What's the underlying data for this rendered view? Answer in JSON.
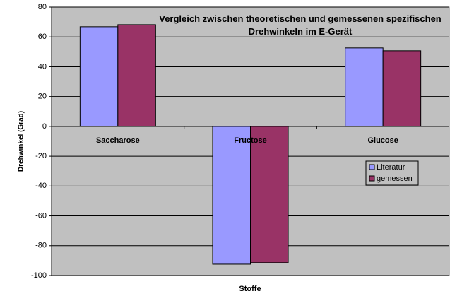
{
  "chart_data": {
    "type": "bar",
    "title": "Vergleich zwischen theoretischen und gemessenen spezifischen Drehwinkeln im E-Gerät",
    "x_label": "Stoffe",
    "y_label": "Drehwinkel (Grad)",
    "categories": [
      "Saccharose",
      "Fructose",
      "Glucose"
    ],
    "series": [
      {
        "name": "Literatur",
        "color": "#9999ff",
        "values": [
          66.8,
          -92.4,
          52.6
        ]
      },
      {
        "name": "gemessen",
        "color": "#993366",
        "values": [
          68.2,
          -91.4,
          50.7
        ]
      }
    ],
    "ylim": [
      -100,
      80
    ],
    "yticks": [
      -100,
      -80,
      -60,
      -40,
      -20,
      0,
      20,
      40,
      60,
      80
    ],
    "grid": true,
    "legend": "right"
  }
}
